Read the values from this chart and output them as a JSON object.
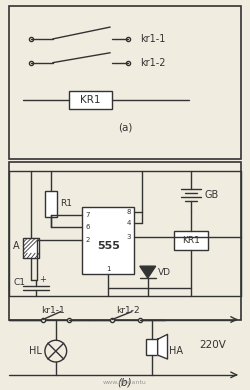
{
  "bg_color": "#f0ece0",
  "line_color": "#333333",
  "text_color": "#333333",
  "label_kr1_1": "kr1-1",
  "label_kr1_2": "kr1-2",
  "label_kr1_box": "KR1",
  "label_a": "(a)",
  "label_b": "(b)",
  "label_R1": "R1",
  "label_555": "555",
  "label_A": "A",
  "label_C1": "C1",
  "label_GB": "GB",
  "label_KR1": "KR1",
  "label_VD": "VD",
  "label_HL": "HL",
  "label_HA": "HA",
  "label_220V": "220V",
  "watermark": "www.jiexiantu",
  "fig_width": 2.5,
  "fig_height": 3.9
}
